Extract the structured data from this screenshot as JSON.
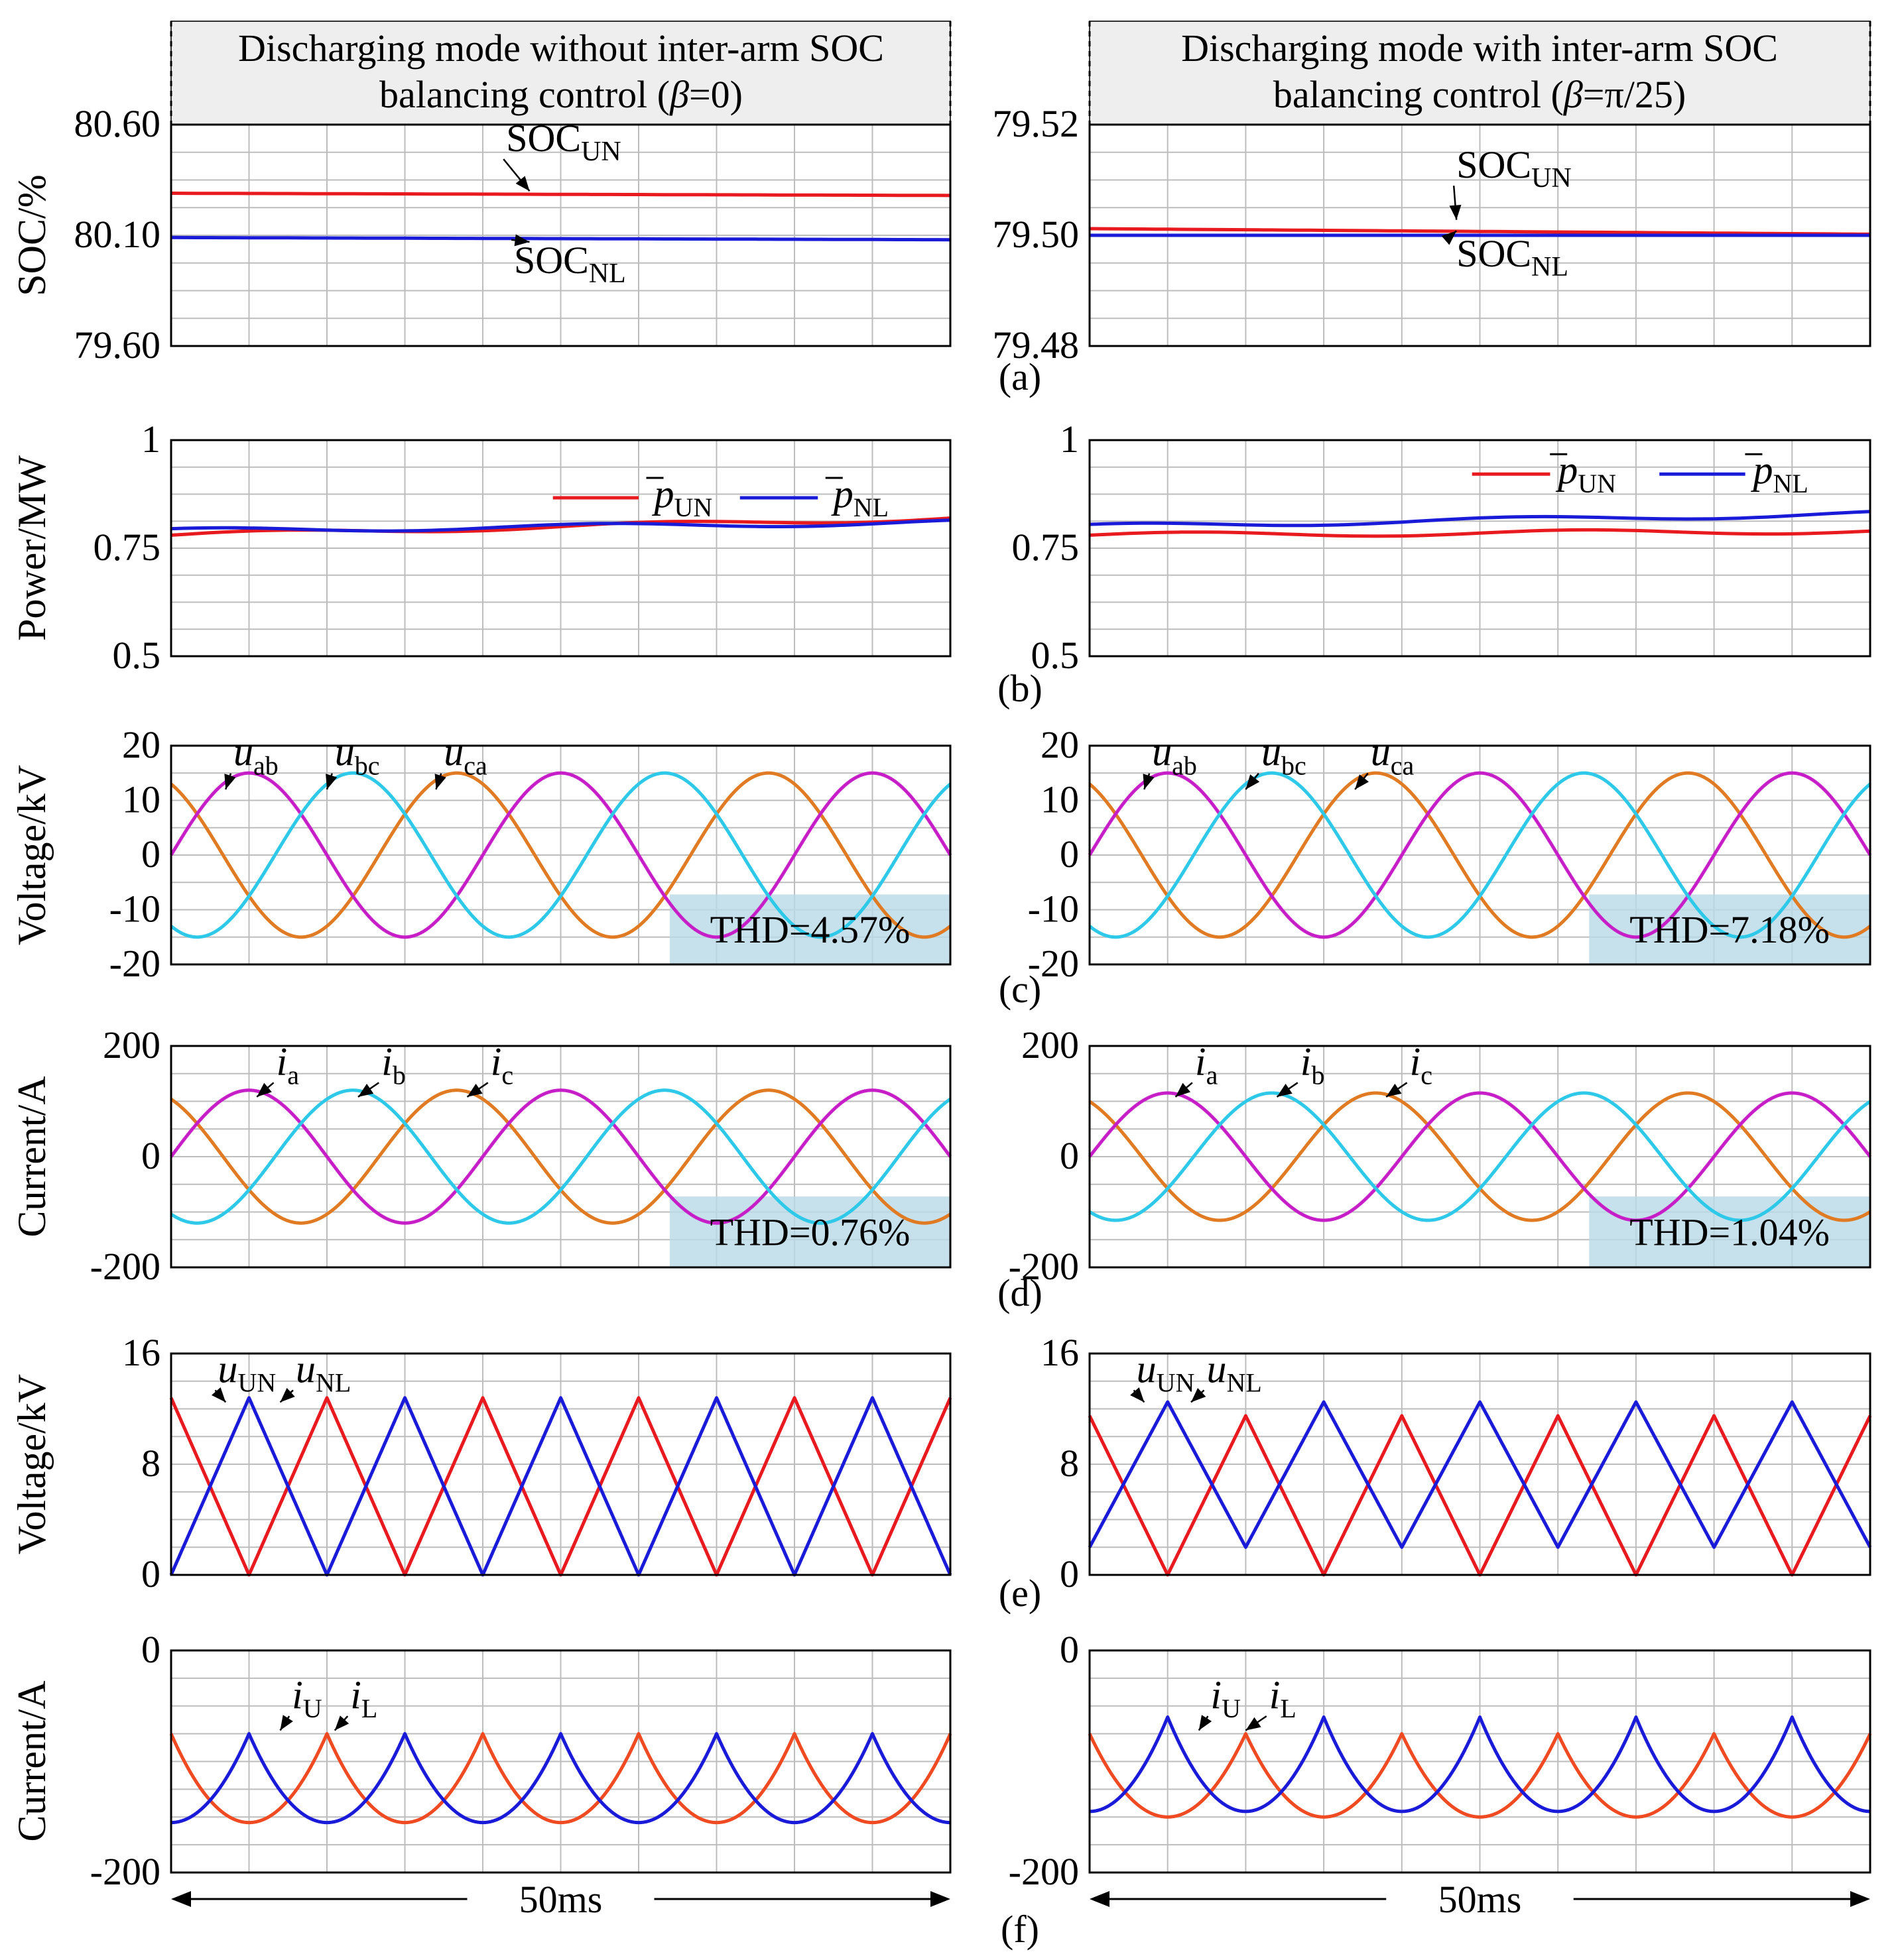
{
  "columns": [
    {
      "header_line1": "Discharging mode without inter-arm SOC",
      "header_line2_prefix": "balancing control (",
      "beta_symbol": "β",
      "beta_value": "=0)"
    },
    {
      "header_line1": "Discharging mode with inter-arm SOC",
      "header_line2_prefix": "balancing control (",
      "beta_symbol": "β",
      "beta_value": "=π/25)"
    }
  ],
  "time_span_label": "50ms",
  "colors": {
    "red": "#e8191f",
    "blue": "#1a1ad9",
    "orange": "#e07b24",
    "magenta": "#c71fc7",
    "cyan": "#2ec8e8",
    "thd_box": "#b9dbe6"
  },
  "chart_data": [
    {
      "id": "a-left",
      "panel": "(a)",
      "type": "line",
      "ylabel": "SOC/%",
      "ylim": [
        79.6,
        80.6
      ],
      "yticks": [
        "80.60",
        "80.10",
        "79.60"
      ],
      "x_span_ms": 50,
      "series": [
        {
          "name": "SOCUN",
          "base": "SOC",
          "sub": "UN",
          "color": "#e8191f",
          "value_start": 80.29,
          "value_end": 80.28
        },
        {
          "name": "SOCNL",
          "base": "SOC",
          "sub": "NL",
          "color": "#1a1ad9",
          "value_start": 80.09,
          "value_end": 80.08
        }
      ]
    },
    {
      "id": "a-right",
      "panel": "(a)",
      "type": "line",
      "ylabel": "",
      "ylim": [
        79.48,
        79.52
      ],
      "yticks": [
        "79.52",
        "79.50",
        "79.48"
      ],
      "x_span_ms": 50,
      "series": [
        {
          "name": "SOCUN",
          "base": "SOC",
          "sub": "UN",
          "color": "#e8191f",
          "value_start": 79.5012,
          "value_end": 79.5002
        },
        {
          "name": "SOCNL",
          "base": "SOC",
          "sub": "NL",
          "color": "#1a1ad9",
          "value_start": 79.5,
          "value_end": 79.5
        }
      ]
    },
    {
      "id": "b-left",
      "panel": "(b)",
      "type": "line",
      "ylabel": "Power/MW",
      "ylim": [
        0.5,
        1.0
      ],
      "yticks": [
        "1",
        "0.75",
        "0.5"
      ],
      "x_span_ms": 50,
      "series": [
        {
          "name": "pUN",
          "base": "p",
          "sub": "UN",
          "color": "#e8191f",
          "value_start": 0.78,
          "value_end": 0.82
        },
        {
          "name": "pNL",
          "base": "p",
          "sub": "NL",
          "color": "#1a1ad9",
          "value_start": 0.79,
          "value_end": 0.81
        }
      ]
    },
    {
      "id": "b-right",
      "panel": "(b)",
      "type": "line",
      "ylabel": "",
      "ylim": [
        0.5,
        1.0
      ],
      "yticks": [
        "1",
        "0.75",
        "0.5"
      ],
      "x_span_ms": 50,
      "series": [
        {
          "name": "pUN",
          "base": "p",
          "sub": "UN",
          "color": "#e8191f",
          "value_start": 0.78,
          "value_end": 0.79
        },
        {
          "name": "pNL",
          "base": "p",
          "sub": "NL",
          "color": "#1a1ad9",
          "value_start": 0.8,
          "value_end": 0.83
        }
      ]
    },
    {
      "id": "c-left",
      "panel": "(c)",
      "type": "line",
      "ylabel": "Voltage/kV",
      "ylim": [
        -20,
        20
      ],
      "yticks": [
        "20",
        "10",
        "0",
        "-10",
        "-20"
      ],
      "x_span_ms": 50,
      "frequency_hz": 50,
      "annotation": "THD=4.57%",
      "series": [
        {
          "name": "uab",
          "base": "u",
          "sub": "ab",
          "color": "#e07b24",
          "amplitude": 15,
          "phase_deg": 120
        },
        {
          "name": "ubc",
          "base": "u",
          "sub": "bc",
          "color": "#c71fc7",
          "amplitude": 15,
          "phase_deg": 0
        },
        {
          "name": "uca",
          "base": "u",
          "sub": "ca",
          "color": "#2ec8e8",
          "amplitude": 15,
          "phase_deg": -120
        }
      ]
    },
    {
      "id": "c-right",
      "panel": "(c)",
      "type": "line",
      "ylabel": "",
      "ylim": [
        -20,
        20
      ],
      "yticks": [
        "20",
        "10",
        "0",
        "-10",
        "-20"
      ],
      "x_span_ms": 50,
      "frequency_hz": 50,
      "annotation": "THD=7.18%",
      "series": [
        {
          "name": "uab",
          "base": "u",
          "sub": "ab",
          "color": "#e07b24",
          "amplitude": 15,
          "phase_deg": 120
        },
        {
          "name": "ubc",
          "base": "u",
          "sub": "bc",
          "color": "#c71fc7",
          "amplitude": 15,
          "phase_deg": 0
        },
        {
          "name": "uca",
          "base": "u",
          "sub": "ca",
          "color": "#2ec8e8",
          "amplitude": 15,
          "phase_deg": -120
        }
      ]
    },
    {
      "id": "d-left",
      "panel": "(d)",
      "type": "line",
      "ylabel": "Current/A",
      "ylim": [
        -200,
        200
      ],
      "yticks": [
        "200",
        "0",
        "-200"
      ],
      "x_span_ms": 50,
      "frequency_hz": 50,
      "annotation": "THD=0.76%",
      "series": [
        {
          "name": "ia",
          "base": "i",
          "sub": "a",
          "color": "#e07b24",
          "amplitude": 120,
          "phase_deg": 120
        },
        {
          "name": "ib",
          "base": "i",
          "sub": "b",
          "color": "#c71fc7",
          "amplitude": 120,
          "phase_deg": 0
        },
        {
          "name": "ic",
          "base": "i",
          "sub": "c",
          "color": "#2ec8e8",
          "amplitude": 120,
          "phase_deg": -120
        }
      ]
    },
    {
      "id": "d-right",
      "panel": "(d)",
      "type": "line",
      "ylabel": "",
      "ylim": [
        -200,
        200
      ],
      "yticks": [
        "200",
        "0",
        "-200"
      ],
      "x_span_ms": 50,
      "frequency_hz": 50,
      "annotation": "THD=1.04%",
      "series": [
        {
          "name": "ia",
          "base": "i",
          "sub": "a",
          "color": "#e07b24",
          "amplitude": 115,
          "phase_deg": 120
        },
        {
          "name": "ib",
          "base": "i",
          "sub": "b",
          "color": "#c71fc7",
          "amplitude": 115,
          "phase_deg": 0
        },
        {
          "name": "ic",
          "base": "i",
          "sub": "c",
          "color": "#2ec8e8",
          "amplitude": 115,
          "phase_deg": -120
        }
      ]
    },
    {
      "id": "e-left",
      "panel": "(e)",
      "type": "line",
      "ylabel": "Voltage/kV",
      "ylim": [
        0,
        16
      ],
      "yticks": [
        "16",
        "8",
        "0"
      ],
      "x_span_ms": 50,
      "frequency_hz": 100,
      "waveform": "triangle",
      "series": [
        {
          "name": "uUN",
          "base": "u",
          "sub": "UN",
          "color": "#e8191f",
          "min": 0,
          "max": 12.8,
          "phase_deg": 180
        },
        {
          "name": "uNL",
          "base": "u",
          "sub": "NL",
          "color": "#1a1ad9",
          "min": 0,
          "max": 12.8,
          "phase_deg": 0
        }
      ]
    },
    {
      "id": "e-right",
      "panel": "(e)",
      "type": "line",
      "ylabel": "",
      "ylim": [
        0,
        16
      ],
      "yticks": [
        "16",
        "8",
        "0"
      ],
      "x_span_ms": 50,
      "frequency_hz": 100,
      "waveform": "triangle",
      "series": [
        {
          "name": "uUN",
          "base": "u",
          "sub": "UN",
          "color": "#e8191f",
          "min": 0,
          "max": 11.5,
          "phase_deg": 180
        },
        {
          "name": "uNL",
          "base": "u",
          "sub": "NL",
          "color": "#1a1ad9",
          "min": 2,
          "max": 12.5,
          "phase_deg": 0
        }
      ]
    },
    {
      "id": "f-left",
      "panel": "(f)",
      "type": "line",
      "ylabel": "Current/A",
      "ylim": [
        -200,
        0
      ],
      "yticks": [
        "0",
        "-200"
      ],
      "x_span_ms": 50,
      "frequency_hz": 100,
      "waveform": "cusp",
      "series": [
        {
          "name": "iU",
          "base": "i",
          "sub": "U",
          "color": "#f04a22",
          "min": -155,
          "max": -75,
          "phase_deg": 180
        },
        {
          "name": "iL",
          "base": "i",
          "sub": "L",
          "color": "#1a1ad9",
          "min": -155,
          "max": -75,
          "phase_deg": 0
        }
      ]
    },
    {
      "id": "f-right",
      "panel": "(f)",
      "type": "line",
      "ylabel": "",
      "ylim": [
        -200,
        0
      ],
      "yticks": [
        "0",
        "-200"
      ],
      "x_span_ms": 50,
      "frequency_hz": 100,
      "waveform": "cusp",
      "series": [
        {
          "name": "iU",
          "base": "i",
          "sub": "U",
          "color": "#f04a22",
          "min": -150,
          "max": -75,
          "phase_deg": 180
        },
        {
          "name": "iL",
          "base": "i",
          "sub": "L",
          "color": "#1a1ad9",
          "min": -145,
          "max": -60,
          "phase_deg": 0
        }
      ]
    }
  ]
}
